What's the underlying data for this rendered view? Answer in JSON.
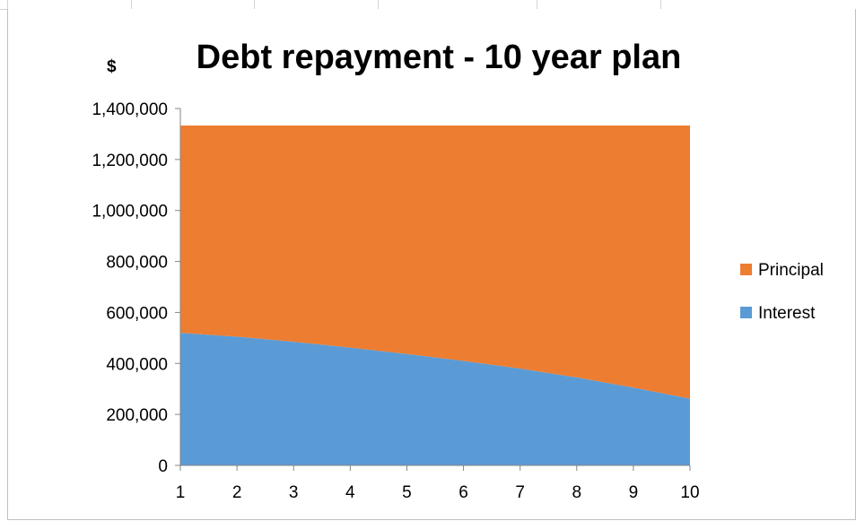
{
  "chart_data": {
    "type": "area",
    "stacked": true,
    "title": "Debt repayment  - 10 year plan",
    "unit_label": "$",
    "x": [
      1,
      2,
      3,
      4,
      5,
      6,
      7,
      8,
      9,
      10
    ],
    "series": [
      {
        "name": "Interest",
        "color": "#5b9bd5",
        "values": [
          520000,
          505000,
          485000,
          462000,
          437000,
          410000,
          380000,
          345000,
          305000,
          262000
        ]
      },
      {
        "name": "Principal",
        "color": "#ed7d31",
        "values": [
          813000,
          828000,
          848000,
          871000,
          896000,
          923000,
          953000,
          988000,
          1028000,
          1071000
        ]
      }
    ],
    "ylim": [
      0,
      1400000
    ],
    "yticks": [
      "0",
      "200,000",
      "400,000",
      "600,000",
      "800,000",
      "1,000,000",
      "1,200,000",
      "1,400,000"
    ],
    "xticks": [
      "1",
      "2",
      "3",
      "4",
      "5",
      "6",
      "7",
      "8",
      "9",
      "10"
    ],
    "grid": false,
    "legend_position": "right"
  }
}
